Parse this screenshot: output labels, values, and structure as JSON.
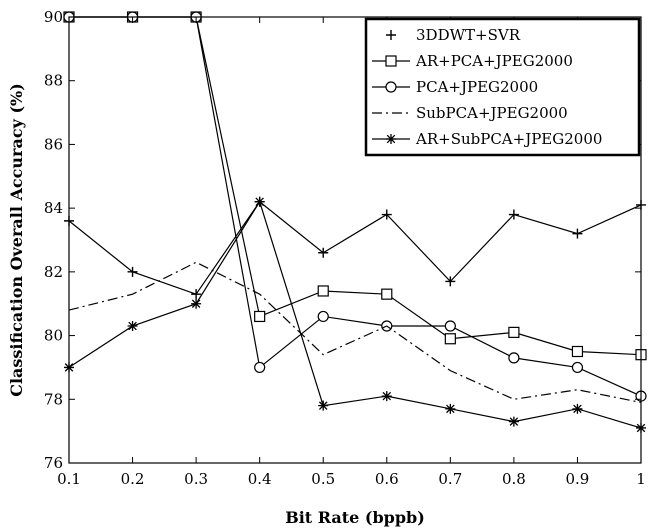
{
  "chart_data": {
    "type": "line",
    "title": "",
    "xlabel": "Bit Rate (bppb)",
    "ylabel": "Classification Overall Accuracy (%)",
    "xlim": [
      0.1,
      1
    ],
    "ylim": [
      76,
      90
    ],
    "xticks": [
      0.1,
      0.2,
      0.3,
      0.4,
      0.5,
      0.6,
      0.7,
      0.8,
      0.9,
      1
    ],
    "xtick_labels": [
      "0.1",
      "0.2",
      "0.3",
      "0.4",
      "0.5",
      "0.6",
      "0.7",
      "0.8",
      "0.9",
      "1"
    ],
    "yticks": [
      76,
      78,
      80,
      82,
      84,
      86,
      88,
      90
    ],
    "ytick_labels": [
      "76",
      "78",
      "80",
      "82",
      "84",
      "86",
      "88",
      "90"
    ],
    "grid": false,
    "legend_position": "top-right",
    "x": [
      0.1,
      0.2,
      0.3,
      0.4,
      0.5,
      0.6,
      0.7,
      0.8,
      0.9,
      1
    ],
    "series": [
      {
        "name": "3DDWT+SVR",
        "marker": "plus",
        "line": "solid",
        "values": [
          83.6,
          82.0,
          81.3,
          84.2,
          82.6,
          83.8,
          81.7,
          83.8,
          83.2,
          84.1
        ]
      },
      {
        "name": "AR+PCA+JPEG2000",
        "marker": "square",
        "line": "solid",
        "values": [
          90.0,
          90.0,
          90.0,
          80.6,
          81.4,
          81.3,
          79.9,
          80.1,
          79.5,
          79.4
        ]
      },
      {
        "name": "PCA+JPEG2000",
        "marker": "circle",
        "line": "solid",
        "values": [
          90.0,
          90.0,
          90.0,
          79.0,
          80.6,
          80.3,
          80.3,
          79.3,
          79.0,
          78.1
        ]
      },
      {
        "name": "SubPCA+JPEG2000",
        "marker": "none",
        "line": "dashdot",
        "values": [
          80.8,
          81.3,
          82.3,
          81.3,
          79.4,
          80.3,
          78.9,
          78.0,
          78.3,
          77.9
        ]
      },
      {
        "name": "AR+SubPCA+JPEG2000",
        "marker": "star",
        "line": "solid",
        "values": [
          79.0,
          80.3,
          81.0,
          84.2,
          77.8,
          78.1,
          77.7,
          77.3,
          77.7,
          77.1
        ]
      }
    ]
  }
}
